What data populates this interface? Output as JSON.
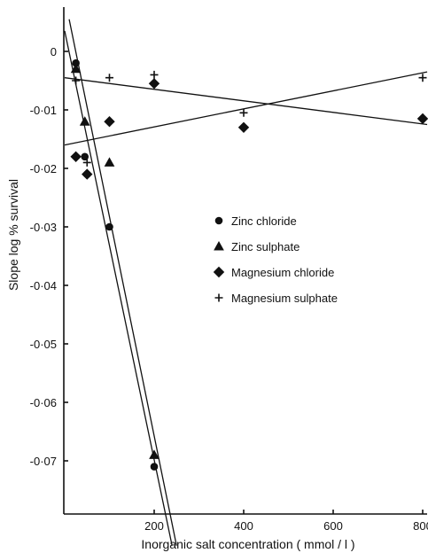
{
  "chart_data": {
    "type": "scatter",
    "title": "",
    "xlabel": "Inorganic salt concentration ( mmol / l )",
    "ylabel": "Slope log % survival",
    "xlim": [
      0,
      800
    ],
    "ylim": [
      -0.08,
      0.0055
    ],
    "xticks": [
      200,
      400,
      600,
      800
    ],
    "xtick_labels": [
      "200",
      "400",
      "600",
      "800"
    ],
    "yticks": [
      0,
      -0.01,
      -0.02,
      -0.03,
      -0.04,
      -0.05,
      -0.06,
      -0.07
    ],
    "ytick_labels": [
      "0",
      "-0·01",
      "-0·02",
      "-0·03",
      "-0·04",
      "-0·05",
      "-0·06",
      "-0·07"
    ],
    "grid": false,
    "legend_position": "center-right",
    "series": [
      {
        "name": "Zinc chloride",
        "marker": "circle",
        "points": [
          [
            25,
            -0.002
          ],
          [
            45,
            -0.018
          ],
          [
            50,
            -0.021
          ],
          [
            100,
            -0.03
          ],
          [
            200,
            -0.071
          ]
        ],
        "fit": [
          [
            0,
            0.0035
          ],
          [
            240,
            -0.0845
          ]
        ]
      },
      {
        "name": "Zinc sulphate",
        "marker": "triangle",
        "points": [
          [
            25,
            -0.003
          ],
          [
            45,
            -0.012
          ],
          [
            100,
            -0.019
          ],
          [
            200,
            -0.069
          ]
        ],
        "fit": [
          [
            10,
            0.0055
          ],
          [
            250,
            -0.0845
          ]
        ]
      },
      {
        "name": "Magnesium chloride",
        "marker": "diamond",
        "points": [
          [
            25,
            -0.018
          ],
          [
            50,
            -0.021
          ],
          [
            100,
            -0.012
          ],
          [
            200,
            -0.0055
          ],
          [
            400,
            -0.013
          ],
          [
            800,
            -0.0115
          ]
        ],
        "fit": [
          [
            0,
            -0.0045
          ],
          [
            810,
            -0.0125
          ]
        ]
      },
      {
        "name": "Magnesium sulphate",
        "marker": "plus",
        "points": [
          [
            25,
            -0.005
          ],
          [
            50,
            -0.019
          ],
          [
            100,
            -0.0045
          ],
          [
            200,
            -0.004
          ],
          [
            400,
            -0.0105
          ],
          [
            800,
            -0.0045
          ]
        ],
        "fit": [
          [
            0,
            -0.016
          ],
          [
            810,
            -0.0035
          ]
        ]
      }
    ]
  }
}
